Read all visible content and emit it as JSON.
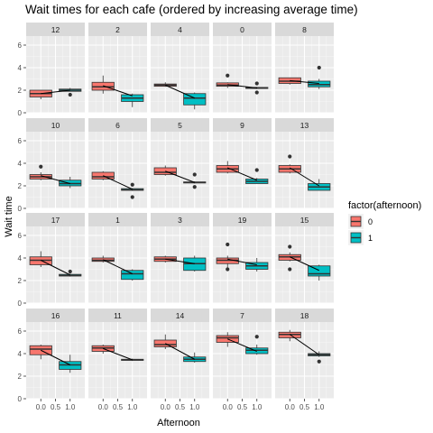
{
  "chart_data": {
    "type": "boxplot",
    "title": "Wait times for each cafe (ordered by increasing average time)",
    "xlabel": "Afternoon",
    "ylabel": "Wait time",
    "x_ticks": [
      "0.0",
      "0.5",
      "1.0"
    ],
    "y_ticks": [
      "0",
      "2",
      "4",
      "6"
    ],
    "ylim": [
      0,
      6.8
    ],
    "xlim": [
      -0.5,
      1.5
    ],
    "grid": true,
    "legend": {
      "title": "factor(afternoon)",
      "position": "right",
      "entries": [
        {
          "label": "0",
          "color": "#F8766D"
        },
        {
          "label": "1",
          "color": "#00BFC4"
        }
      ]
    },
    "panels": [
      {
        "id": "12",
        "g0": {
          "min": 1.2,
          "q1": 1.4,
          "med": 1.7,
          "q3": 2.0,
          "max": 2.0,
          "outliers": []
        },
        "g1": {
          "min": 1.9,
          "q1": 1.9,
          "med": 2.0,
          "q3": 2.1,
          "max": 2.2,
          "outliers": [
            1.6
          ]
        },
        "mean0": 1.7,
        "mean1": 2.0
      },
      {
        "id": "2",
        "g0": {
          "min": 1.7,
          "q1": 2.0,
          "med": 2.3,
          "q3": 2.7,
          "max": 3.3,
          "outliers": []
        },
        "g1": {
          "min": 0.5,
          "q1": 1.0,
          "med": 1.3,
          "q3": 1.6,
          "max": 1.7,
          "outliers": []
        },
        "mean0": 2.4,
        "mean1": 1.5
      },
      {
        "id": "4",
        "g0": {
          "min": 2.3,
          "q1": 2.35,
          "med": 2.45,
          "q3": 2.55,
          "max": 2.7,
          "outliers": []
        },
        "g1": {
          "min": 0.3,
          "q1": 0.7,
          "med": 1.3,
          "q3": 1.7,
          "max": 1.8,
          "outliers": []
        },
        "mean0": 2.45,
        "mean1": 1.3
      },
      {
        "id": "0",
        "g0": {
          "min": 2.2,
          "q1": 2.35,
          "med": 2.45,
          "q3": 2.65,
          "max": 2.7,
          "outliers": [
            3.3
          ]
        },
        "g1": {
          "min": 2.1,
          "q1": 2.15,
          "med": 2.2,
          "q3": 2.25,
          "max": 2.3,
          "outliers": [
            2.6,
            1.8
          ]
        },
        "mean0": 2.5,
        "mean1": 2.2
      },
      {
        "id": "8",
        "g0": {
          "min": 2.5,
          "q1": 2.6,
          "med": 2.8,
          "q3": 3.1,
          "max": 3.1,
          "outliers": []
        },
        "g1": {
          "min": 2.1,
          "q1": 2.3,
          "med": 2.5,
          "q3": 2.8,
          "max": 3.0,
          "outliers": [
            4.0
          ]
        },
        "mean0": 2.85,
        "mean1": 2.6
      },
      {
        "id": "10",
        "g0": {
          "min": 2.5,
          "q1": 2.6,
          "med": 2.8,
          "q3": 3.0,
          "max": 3.2,
          "outliers": [
            3.7
          ]
        },
        "g1": {
          "min": 1.8,
          "q1": 2.0,
          "med": 2.2,
          "q3": 2.5,
          "max": 2.8,
          "outliers": []
        },
        "mean0": 2.9,
        "mean1": 2.2
      },
      {
        "id": "6",
        "g0": {
          "min": 2.5,
          "q1": 2.6,
          "med": 2.8,
          "q3": 3.2,
          "max": 3.3,
          "outliers": []
        },
        "g1": {
          "min": 1.55,
          "q1": 1.6,
          "med": 1.65,
          "q3": 1.75,
          "max": 1.8,
          "outliers": [
            2.1,
            1.0
          ]
        },
        "mean0": 2.9,
        "mean1": 1.7
      },
      {
        "id": "5",
        "g0": {
          "min": 2.9,
          "q1": 3.0,
          "med": 3.2,
          "q3": 3.6,
          "max": 3.8,
          "outliers": []
        },
        "g1": {
          "min": 2.2,
          "q1": 2.25,
          "med": 2.3,
          "q3": 2.35,
          "max": 2.4,
          "outliers": [
            3.0,
            1.9
          ]
        },
        "mean0": 3.3,
        "mean1": 2.3
      },
      {
        "id": "9",
        "g0": {
          "min": 3.1,
          "q1": 3.2,
          "med": 3.5,
          "q3": 3.8,
          "max": 4.2,
          "outliers": []
        },
        "g1": {
          "min": 2.2,
          "q1": 2.2,
          "med": 2.4,
          "q3": 2.6,
          "max": 2.7,
          "outliers": [
            3.4
          ]
        },
        "mean0": 3.6,
        "mean1": 2.5
      },
      {
        "id": "13",
        "g0": {
          "min": 3.1,
          "q1": 3.2,
          "med": 3.5,
          "q3": 3.8,
          "max": 3.9,
          "outliers": [
            4.6
          ]
        },
        "g1": {
          "min": 1.6,
          "q1": 1.6,
          "med": 1.9,
          "q3": 2.2,
          "max": 2.6,
          "outliers": []
        },
        "mean0": 3.6,
        "mean1": 2.0
      },
      {
        "id": "17",
        "g0": {
          "min": 3.2,
          "q1": 3.4,
          "med": 3.8,
          "q3": 4.1,
          "max": 4.6,
          "outliers": []
        },
        "g1": {
          "min": 2.35,
          "q1": 2.4,
          "med": 2.45,
          "q3": 2.55,
          "max": 2.6,
          "outliers": [
            2.8
          ]
        },
        "mean0": 3.8,
        "mean1": 2.5
      },
      {
        "id": "1",
        "g0": {
          "min": 3.6,
          "q1": 3.7,
          "med": 3.8,
          "q3": 4.0,
          "max": 4.2,
          "outliers": []
        },
        "g1": {
          "min": 2.0,
          "q1": 2.1,
          "med": 2.6,
          "q3": 2.9,
          "max": 3.0,
          "outliers": []
        },
        "mean0": 3.85,
        "mean1": 2.6
      },
      {
        "id": "3",
        "g0": {
          "min": 3.6,
          "q1": 3.7,
          "med": 3.9,
          "q3": 4.1,
          "max": 4.2,
          "outliers": []
        },
        "g1": {
          "min": 2.8,
          "q1": 2.9,
          "med": 3.5,
          "q3": 4.0,
          "max": 4.2,
          "outliers": []
        },
        "mean0": 3.9,
        "mean1": 3.5
      },
      {
        "id": "19",
        "g0": {
          "min": 3.0,
          "q1": 3.5,
          "med": 3.8,
          "q3": 4.0,
          "max": 4.2,
          "outliers": [
            5.2,
            3.0
          ]
        },
        "g1": {
          "min": 2.8,
          "q1": 3.0,
          "med": 3.3,
          "q3": 3.6,
          "max": 4.0,
          "outliers": []
        },
        "mean0": 3.9,
        "mean1": 3.4
      },
      {
        "id": "15",
        "g0": {
          "min": 3.7,
          "q1": 3.8,
          "med": 4.1,
          "q3": 4.3,
          "max": 4.5,
          "outliers": [
            5.0,
            3.0
          ]
        },
        "g1": {
          "min": 2.0,
          "q1": 2.4,
          "med": 2.6,
          "q3": 3.3,
          "max": 3.4,
          "outliers": []
        },
        "mean0": 4.1,
        "mean1": 2.9
      },
      {
        "id": "16",
        "g0": {
          "min": 3.5,
          "q1": 3.9,
          "med": 4.4,
          "q3": 4.7,
          "max": 4.8,
          "outliers": []
        },
        "g1": {
          "min": 2.3,
          "q1": 2.6,
          "med": 3.0,
          "q3": 3.3,
          "max": 3.9,
          "outliers": []
        },
        "mean0": 4.3,
        "mean1": 3.0
      },
      {
        "id": "11",
        "g0": {
          "min": 4.0,
          "q1": 4.2,
          "med": 4.5,
          "q3": 4.7,
          "max": 4.8,
          "outliers": []
        },
        "g1": {
          "min": 3.35,
          "q1": 3.4,
          "med": 3.45,
          "q3": 3.5,
          "max": 3.55,
          "outliers": []
        },
        "mean0": 4.45,
        "mean1": 3.45
      },
      {
        "id": "14",
        "g0": {
          "min": 4.4,
          "q1": 4.6,
          "med": 4.8,
          "q3": 5.2,
          "max": 5.7,
          "outliers": []
        },
        "g1": {
          "min": 3.2,
          "q1": 3.3,
          "med": 3.5,
          "q3": 3.7,
          "max": 4.1,
          "outliers": []
        },
        "mean0": 4.9,
        "mean1": 3.5
      },
      {
        "id": "7",
        "g0": {
          "min": 4.6,
          "q1": 5.0,
          "med": 5.4,
          "q3": 5.6,
          "max": 5.9,
          "outliers": []
        },
        "g1": {
          "min": 3.9,
          "q1": 4.0,
          "med": 4.3,
          "q3": 4.5,
          "max": 4.8,
          "outliers": [
            5.5
          ]
        },
        "mean0": 5.3,
        "mean1": 4.2
      },
      {
        "id": "18",
        "g0": {
          "min": 5.1,
          "q1": 5.4,
          "med": 5.7,
          "q3": 5.9,
          "max": 6.1,
          "outliers": []
        },
        "g1": {
          "min": 3.7,
          "q1": 3.8,
          "med": 3.9,
          "q3": 4.0,
          "max": 4.2,
          "outliers": [
            3.3
          ]
        },
        "mean0": 5.7,
        "mean1": 3.9
      }
    ]
  }
}
